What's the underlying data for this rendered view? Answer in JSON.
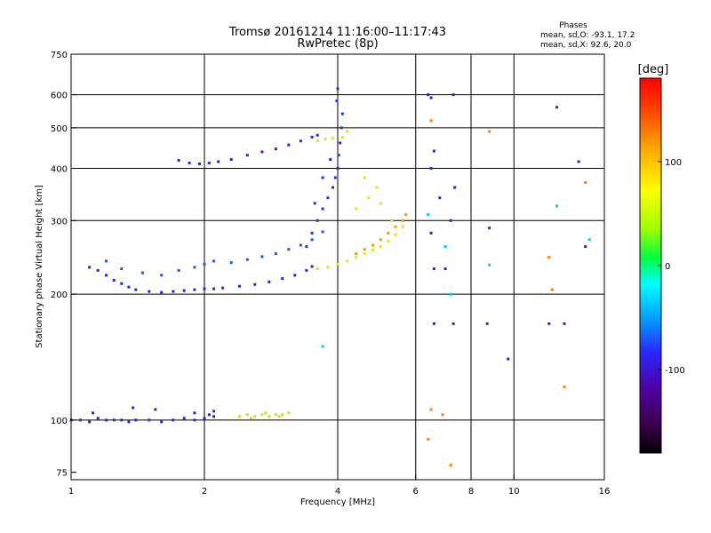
{
  "chart_data": {
    "type": "scatter",
    "title": "Tromsø 20161214 11:16:00–11:17:43",
    "subtitle": "RwPretec (8p)",
    "xlabel": "Frequency [MHz]",
    "ylabel": "Stationary phase Virtual Height [km]",
    "x_scale": "log",
    "y_scale": "log",
    "xlim": [
      1,
      16
    ],
    "ylim": [
      72,
      750
    ],
    "x_ticks": [
      1,
      2,
      4,
      6,
      8,
      10,
      16
    ],
    "y_ticks": [
      75,
      100,
      200,
      300,
      400,
      500,
      600,
      750
    ],
    "x_grid": [
      2,
      4,
      6,
      8,
      10
    ],
    "y_grid": [
      100,
      200,
      300,
      400,
      500,
      600
    ],
    "info": {
      "heading": "Phases",
      "line1": "mean, sd,O: -93.1, 17.2",
      "line2": "mean, sd,X:  92.6, 20.0"
    },
    "colorbar": {
      "label": "[deg]",
      "range": [
        -180,
        180
      ],
      "ticks": [
        100,
        0,
        -100
      ],
      "colors": [
        "#000000",
        "#3c0050",
        "#5000a0",
        "#2828ff",
        "#00a0ff",
        "#00ffff",
        "#00ff40",
        "#a0ff00",
        "#ffff00",
        "#ffa000",
        "#ff4000",
        "#ff0000"
      ]
    },
    "series": [
      {
        "color": "#1e28e6",
        "x": [
          1.0,
          1.05,
          1.1,
          1.15,
          1.2,
          1.25,
          1.3,
          1.35,
          1.4,
          1.5,
          1.6,
          1.7,
          1.8,
          1.9,
          2.0,
          2.1,
          1.12,
          1.38,
          1.55,
          1.9,
          2.05,
          2.1
        ],
        "y": [
          100,
          100,
          99,
          101,
          100,
          100,
          100,
          99,
          100,
          100,
          99,
          100,
          101,
          100,
          101,
          102,
          104,
          107,
          106,
          104,
          103,
          105
        ]
      },
      {
        "color": "#c8e600",
        "x": [
          2.4,
          2.5,
          2.6,
          2.7,
          2.8,
          2.9,
          3.0,
          3.1,
          2.55,
          2.75,
          2.95
        ],
        "y": [
          102,
          103,
          102,
          103,
          102,
          103,
          103,
          104,
          101,
          104,
          102
        ]
      },
      {
        "color": "#1e28e6",
        "x": [
          1.1,
          1.15,
          1.2,
          1.25,
          1.3,
          1.35,
          1.4,
          1.5,
          1.6,
          1.7,
          1.8,
          1.9,
          2.0,
          2.1,
          2.2,
          2.4,
          2.6,
          2.8,
          3.0,
          3.2,
          3.4,
          3.5
        ],
        "y": [
          232,
          228,
          222,
          216,
          212,
          208,
          205,
          203,
          202,
          203,
          204,
          205,
          206,
          206,
          207,
          209,
          211,
          214,
          218,
          222,
          228,
          233
        ]
      },
      {
        "color": "#2850e6",
        "x": [
          1.2,
          1.3,
          1.45,
          1.6,
          1.75,
          1.9,
          2.0,
          2.1,
          2.3,
          2.5,
          2.7,
          2.9,
          3.1,
          3.3,
          3.5,
          3.7
        ],
        "y": [
          240,
          230,
          225,
          222,
          228,
          232,
          236,
          240,
          238,
          242,
          246,
          250,
          256,
          262,
          270,
          282
        ]
      },
      {
        "color": "#2030e0",
        "x": [
          3.4,
          3.5,
          3.6,
          3.7,
          3.8,
          3.9,
          3.95,
          4.0,
          4.02,
          4.05,
          4.08,
          4.1,
          3.98,
          4.0,
          3.85,
          3.7,
          3.55
        ],
        "y": [
          260,
          280,
          300,
          320,
          340,
          360,
          380,
          400,
          430,
          460,
          500,
          540,
          580,
          620,
          420,
          380,
          330
        ]
      },
      {
        "color": "#1e28e6",
        "x": [
          1.75,
          1.85,
          1.95,
          2.05,
          2.15,
          2.3,
          2.5,
          2.7,
          2.9,
          3.1,
          3.3,
          3.5,
          3.6
        ],
        "y": [
          418,
          412,
          410,
          412,
          415,
          420,
          430,
          438,
          445,
          455,
          465,
          475,
          480
        ]
      },
      {
        "color": "#e8e800",
        "x": [
          3.6,
          3.8,
          4.0,
          4.2,
          4.4,
          4.6,
          4.8,
          5.0,
          5.2,
          5.4,
          5.6,
          4.4,
          4.7,
          5.0,
          5.3,
          4.6,
          4.9
        ],
        "y": [
          230,
          232,
          236,
          240,
          245,
          250,
          255,
          260,
          268,
          278,
          290,
          320,
          340,
          330,
          300,
          380,
          360
        ]
      },
      {
        "color": "#ff9600",
        "x": [
          4.4,
          4.6,
          4.8,
          5.0,
          5.2,
          5.4,
          5.6,
          5.7
        ],
        "y": [
          250,
          256,
          262,
          270,
          280,
          290,
          300,
          310
        ]
      },
      {
        "color": "#e8e000",
        "x": [
          3.6,
          3.75,
          3.9,
          4.1,
          4.2
        ],
        "y": [
          465,
          470,
          472,
          475,
          490
        ]
      },
      {
        "color": "#2028dc",
        "x": [
          6.4,
          6.5,
          6.6,
          7.3,
          7.35,
          6.5,
          6.6,
          7.2,
          6.6,
          7.0,
          7.3,
          8.8,
          8.7,
          9.7,
          12.0,
          12.5,
          13.0,
          14.0,
          14.5,
          6.5,
          6.8
        ],
        "y": [
          600,
          590,
          440,
          600,
          360,
          280,
          170,
          300,
          230,
          230,
          170,
          288,
          170,
          140,
          170,
          560,
          170,
          415,
          260,
          400,
          340
        ]
      },
      {
        "color": "#ff8000",
        "x": [
          6.4,
          6.5,
          6.9,
          8.8,
          12.0,
          12.2,
          13.0,
          14.5,
          6.5,
          7.2
        ],
        "y": [
          90,
          106,
          103,
          490,
          245,
          205,
          120,
          370,
          520,
          78
        ]
      },
      {
        "color": "#00d0d0",
        "x": [
          3.7,
          7.0,
          7.2,
          8.8,
          12.5,
          14.8,
          6.4
        ],
        "y": [
          150,
          260,
          200,
          235,
          325,
          270,
          310
        ]
      }
    ]
  }
}
